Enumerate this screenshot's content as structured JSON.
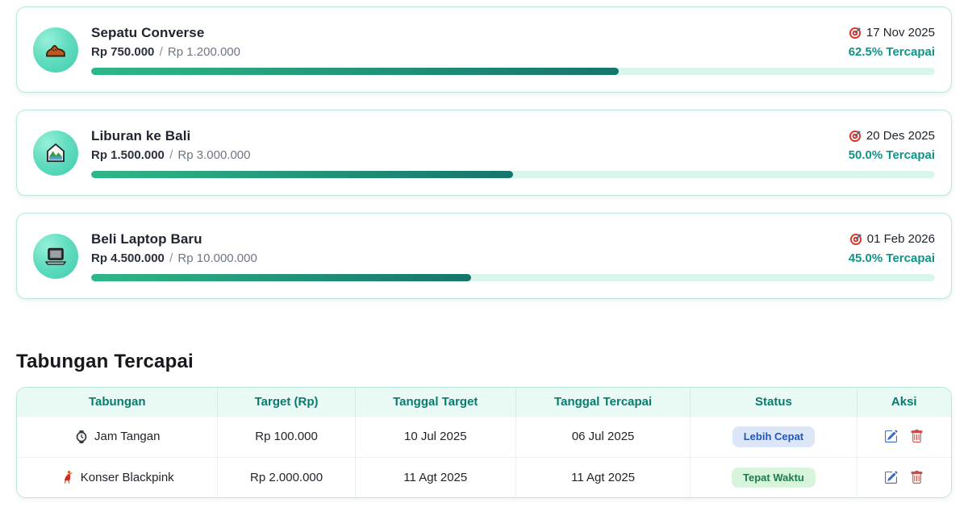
{
  "amounts_separator": "/",
  "goals": [
    {
      "name": "Sepatu Converse",
      "icon": "shoe-icon",
      "saved": "Rp 750.000",
      "target": "Rp 1.200.000",
      "deadline": "17 Nov 2025",
      "progress_percent": 62.5,
      "progress_label": "62.5% Tercapai"
    },
    {
      "name": "Liburan ke Bali",
      "icon": "park-icon",
      "saved": "Rp 1.500.000",
      "target": "Rp 3.000.000",
      "deadline": "20 Des 2025",
      "progress_percent": 50.0,
      "progress_label": "50.0% Tercapai"
    },
    {
      "name": "Beli Laptop Baru",
      "icon": "laptop-icon",
      "saved": "Rp 4.500.000",
      "target": "Rp 10.000.000",
      "deadline": "01 Feb 2026",
      "progress_percent": 45.0,
      "progress_label": "45.0% Tercapai"
    }
  ],
  "achieved": {
    "heading": "Tabungan Tercapai",
    "columns": [
      "Tabungan",
      "Target (Rp)",
      "Tanggal Target",
      "Tanggal Tercapai",
      "Status",
      "Aksi"
    ],
    "rows": [
      {
        "icon": "watch-icon",
        "name": "Jam Tangan",
        "target": "Rp 100.000",
        "target_date": "10 Jul 2025",
        "achieved_date": "06 Jul 2025",
        "status": "Lebih Cepat",
        "status_type": "faster"
      },
      {
        "icon": "dancer-icon",
        "name": "Konser Blackpink",
        "target": "Rp 2.000.000",
        "target_date": "11 Agt 2025",
        "achieved_date": "11 Agt 2025",
        "status": "Tepat Waktu",
        "status_type": "on-time"
      }
    ]
  },
  "colors": {
    "accent_teal": "#0f9488",
    "card_border": "#b9e8db",
    "progress_fill_start": "#2fb786",
    "progress_fill_end": "#15756b",
    "progress_track": "#d9f6ee",
    "table_header_bg": "#e9faf4",
    "table_header_text": "#0b7a6e",
    "badge_faster_bg": "#dbe6f8",
    "badge_faster_text": "#2057c0",
    "badge_ontime_bg": "#d9f4dd",
    "badge_ontime_text": "#1d7a49",
    "edit_icon": "#3a6bc4",
    "delete_icon": "#cd4a43"
  }
}
